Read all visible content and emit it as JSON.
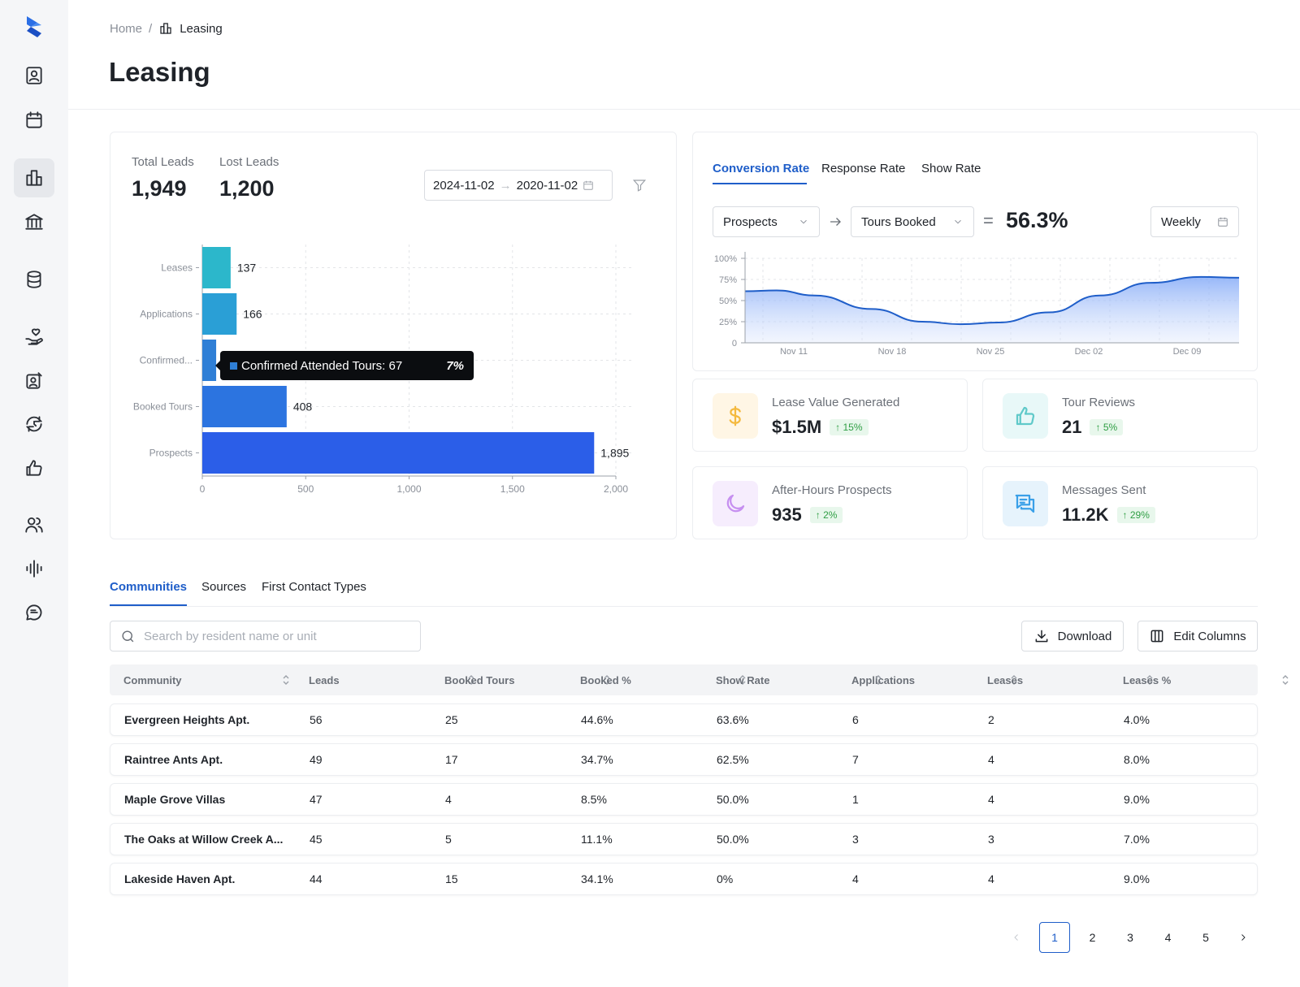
{
  "breadcrumb": {
    "home": "Home",
    "separator": "/",
    "current": "Leasing"
  },
  "page": {
    "title": "Leasing"
  },
  "leads": {
    "total_label": "Total Leads",
    "total_value": "1,949",
    "lost_label": "Lost Leads",
    "lost_value": "1,200",
    "date_start": "2024-11-02",
    "date_end": "2020-11-02"
  },
  "tooltip": {
    "label": "Confirmed Attended Tours: 67",
    "percent": "7%"
  },
  "conversion": {
    "tabs": [
      "Conversion Rate",
      "Response Rate",
      "Show Rate"
    ],
    "from": "Prospects",
    "to": "Tours Booked",
    "equals": "=",
    "rate": "56.3%",
    "period": "Weekly"
  },
  "stats": [
    {
      "title": "Lease Value Generated",
      "value": "$1.5M",
      "change": "15%",
      "icon": "dollar-icon",
      "color": "#f4b93e",
      "bg": "#fff6e5"
    },
    {
      "title": "Tour Reviews",
      "value": "21",
      "change": "5%",
      "icon": "thumbs-up-icon",
      "color": "#5fc9c9",
      "bg": "#e8f8f8"
    },
    {
      "title": "After-Hours Prospects",
      "value": "935",
      "change": "2%",
      "icon": "moon-icon",
      "color": "#c68ff0",
      "bg": "#f6edfd"
    },
    {
      "title": "Messages Sent",
      "value": "11.2K",
      "change": "29%",
      "icon": "messages-icon",
      "color": "#3aa0e8",
      "bg": "#e6f3fc"
    }
  ],
  "table": {
    "tabs": [
      "Communities",
      "Sources",
      "First Contact Types"
    ],
    "search_placeholder": "Search by resident name or unit",
    "download_label": "Download",
    "edit_columns_label": "Edit Columns",
    "columns": [
      "Community",
      "Leads",
      "Booked Tours",
      "Booked %",
      "Show Rate",
      "Applications",
      "Leases",
      "Leases %"
    ],
    "rows": [
      [
        "Evergreen Heights Apt.",
        "56",
        "25",
        "44.6%",
        "63.6%",
        "6",
        "2",
        "4.0%"
      ],
      [
        "Raintree Ants Apt.",
        "49",
        "17",
        "34.7%",
        "62.5%",
        "7",
        "4",
        "8.0%"
      ],
      [
        "Maple Grove Villas",
        "47",
        "4",
        "8.5%",
        "50.0%",
        "1",
        "4",
        "9.0%"
      ],
      [
        "The Oaks at Willow Creek A...",
        "45",
        "5",
        "11.1%",
        "50.0%",
        "3",
        "3",
        "7.0%"
      ],
      [
        "Lakeside Haven Apt.",
        "44",
        "15",
        "34.1%",
        "0%",
        "4",
        "4",
        "9.0%"
      ]
    ]
  },
  "pagination": {
    "pages": [
      "1",
      "2",
      "3",
      "4",
      "5"
    ],
    "current": "1"
  },
  "chart_data": [
    {
      "type": "bar",
      "orientation": "horizontal",
      "categories": [
        "Leases",
        "Applications",
        "Confirmed...",
        "Booked Tours",
        "Prospects"
      ],
      "values": [
        137,
        166,
        67,
        408,
        1895
      ],
      "data_labels": [
        "137",
        "166",
        "",
        "408",
        "1,895"
      ],
      "colors": [
        "#2cb7cb",
        "#2a9fd6",
        "#2f7fd6",
        "#2c74e0",
        "#2b5ee8"
      ],
      "xlim": [
        0,
        2000
      ],
      "xticks": [
        "0",
        "500",
        "1,000",
        "1,500",
        "2,000"
      ],
      "grid": true
    },
    {
      "type": "area",
      "x": [
        "Nov 11",
        "Nov 18",
        "Nov 25",
        "Dec 02",
        "Dec 09"
      ],
      "points": [
        [
          0,
          61
        ],
        [
          0.25,
          62
        ],
        [
          0.55,
          56
        ],
        [
          1.0,
          40
        ],
        [
          1.4,
          25
        ],
        [
          1.7,
          22
        ],
        [
          2.0,
          24
        ],
        [
          2.4,
          36
        ],
        [
          2.8,
          56
        ],
        [
          3.2,
          71
        ],
        [
          3.6,
          78
        ],
        [
          3.9,
          77
        ]
      ],
      "ylim": [
        0,
        100
      ],
      "yticks": [
        "0",
        "25%",
        "50%",
        "75%",
        "100%"
      ],
      "grid": true
    }
  ]
}
